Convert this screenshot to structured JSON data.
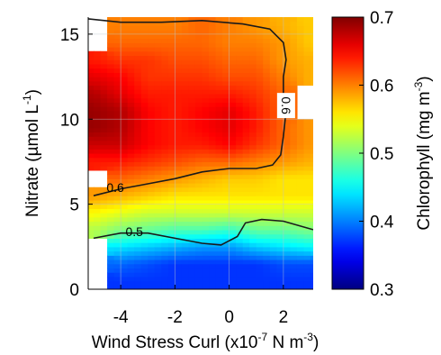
{
  "chart_data": {
    "type": "heatmap",
    "xlabel": {
      "main": "Wind Stress Curl (x10",
      "sup1": "-7",
      "mid": " N m",
      "sup2": "-3",
      "end": ")"
    },
    "ylabel": {
      "main": "Nitrate (µmol L",
      "sup1": "-1",
      "end": ")"
    },
    "colorbar_label": {
      "main": "Chlorophyll (mg m",
      "sup1": "-3",
      "end": ")"
    },
    "xlim": [
      -5.2,
      3.1
    ],
    "ylim": [
      0,
      16
    ],
    "x_ticks": [
      -4,
      -2,
      0,
      2
    ],
    "x_tick_labels": [
      "-4",
      "-2",
      "0",
      "2"
    ],
    "y_ticks": [
      0,
      5,
      10,
      15
    ],
    "y_tick_labels": [
      "0",
      "5",
      "10",
      "15"
    ],
    "colorbar": {
      "range": [
        0.3,
        0.7
      ],
      "ticks": [
        0.3,
        0.4,
        0.5,
        0.6,
        0.7
      ],
      "tick_labels": [
        "0.3",
        "0.4",
        "0.5",
        "0.6",
        "0.7"
      ],
      "colormap": "jet"
    },
    "grid": true,
    "field": {
      "x": [
        -5.0,
        -4.0,
        -3.0,
        -2.0,
        -1.0,
        0.0,
        1.0,
        2.0,
        3.0
      ],
      "y": [
        0.5,
        1.5,
        2.5,
        3.5,
        4.5,
        5.5,
        6.5,
        7.5,
        8.5,
        9.5,
        10.5,
        11.5,
        12.5,
        13.5,
        14.5,
        15.5
      ],
      "z": [
        [
          null,
          0.37,
          0.37,
          0.37,
          0.37,
          0.37,
          0.37,
          0.37,
          0.37
        ],
        [
          null,
          0.39,
          0.38,
          0.37,
          0.37,
          0.37,
          0.37,
          0.38,
          0.38
        ],
        [
          null,
          0.44,
          0.43,
          0.42,
          0.41,
          0.41,
          0.43,
          0.44,
          0.45
        ],
        [
          0.52,
          0.5,
          0.49,
          0.48,
          0.48,
          0.47,
          0.49,
          0.49,
          0.5
        ],
        [
          0.55,
          0.54,
          0.53,
          0.53,
          0.53,
          0.53,
          0.53,
          0.53,
          0.53
        ],
        [
          0.59,
          0.58,
          0.57,
          0.56,
          0.56,
          0.56,
          0.56,
          0.56,
          0.56
        ],
        [
          null,
          0.61,
          0.6,
          0.59,
          0.58,
          0.57,
          0.57,
          0.56,
          0.56
        ],
        [
          0.64,
          0.64,
          0.63,
          0.62,
          0.61,
          0.61,
          0.6,
          0.59,
          0.58
        ],
        [
          0.67,
          0.67,
          0.65,
          0.64,
          0.64,
          0.65,
          0.63,
          0.61,
          0.59
        ],
        [
          0.69,
          0.68,
          0.65,
          0.64,
          0.65,
          0.66,
          0.64,
          0.61,
          0.59
        ],
        [
          0.69,
          0.68,
          0.65,
          0.64,
          0.65,
          0.66,
          0.64,
          0.61,
          null
        ],
        [
          0.68,
          0.66,
          0.64,
          0.64,
          0.64,
          0.64,
          0.63,
          0.61,
          null
        ],
        [
          0.66,
          0.65,
          0.63,
          0.63,
          0.63,
          0.62,
          0.62,
          0.6,
          0.58
        ],
        [
          0.64,
          0.63,
          0.63,
          0.62,
          0.62,
          0.61,
          0.61,
          0.59,
          0.58
        ],
        [
          null,
          0.61,
          0.61,
          0.61,
          0.61,
          0.6,
          0.6,
          0.59,
          0.57
        ],
        [
          null,
          0.6,
          0.6,
          0.6,
          0.61,
          0.6,
          0.59,
          0.58,
          0.57
        ]
      ]
    },
    "contours": [
      {
        "label": "0.5",
        "label_at": [
          -3.5,
          3.4
        ],
        "points": [
          [
            -5.0,
            3.0
          ],
          [
            -4.0,
            3.3
          ],
          [
            -3.0,
            3.3
          ],
          [
            -2.0,
            3.0
          ],
          [
            -1.0,
            2.7
          ],
          [
            -0.3,
            2.6
          ],
          [
            0.3,
            3.1
          ],
          [
            0.6,
            3.9
          ],
          [
            1.2,
            4.1
          ],
          [
            2.0,
            4.0
          ],
          [
            3.1,
            3.5
          ]
        ]
      },
      {
        "label": "0.6",
        "label_at": [
          -4.2,
          6.0
        ],
        "points": [
          [
            -5.0,
            5.5
          ],
          [
            -4.0,
            5.9
          ],
          [
            -3.0,
            6.2
          ],
          [
            -2.0,
            6.5
          ],
          [
            -1.0,
            6.9
          ],
          [
            0.0,
            7.1
          ],
          [
            1.0,
            7.1
          ],
          [
            1.6,
            7.3
          ],
          [
            1.9,
            7.9
          ],
          [
            2.0,
            9.0
          ],
          [
            2.1,
            10.5
          ],
          [
            2.0,
            11.5
          ],
          [
            2.0,
            12.5
          ],
          [
            2.1,
            13.5
          ],
          [
            2.0,
            14.5
          ],
          [
            1.5,
            15.3
          ],
          [
            0.5,
            15.6
          ],
          [
            -1.0,
            15.8
          ],
          [
            -2.5,
            15.7
          ],
          [
            -4.0,
            15.7
          ],
          [
            -5.2,
            15.9
          ]
        ]
      },
      {
        "label": "0.6",
        "label_at": [
          2.1,
          10.8
        ],
        "label_rotate": 90,
        "points": []
      }
    ]
  }
}
